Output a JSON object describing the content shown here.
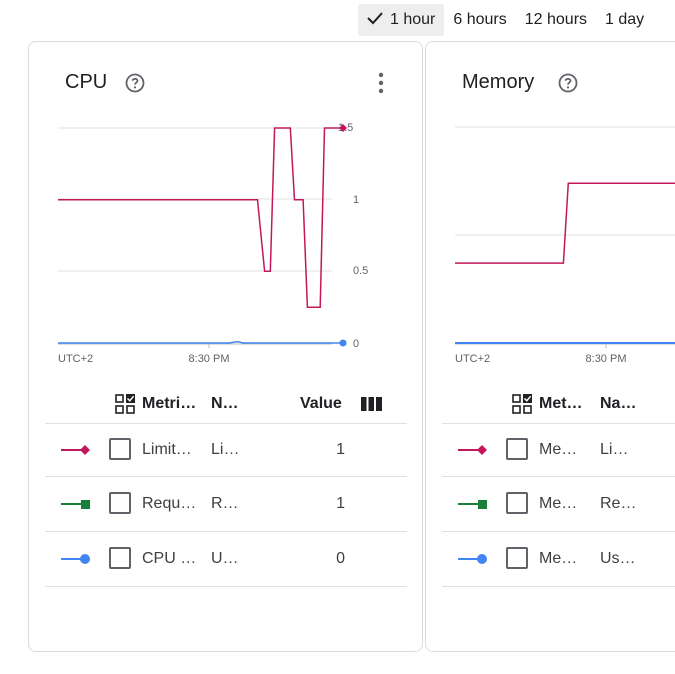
{
  "time_range": {
    "selected": "1 hour",
    "options": [
      "1 hour",
      "6 hours",
      "12 hours",
      "1 day"
    ]
  },
  "colors": {
    "limit": "#c2185b",
    "request": "#188038",
    "usage": "#4285f4"
  },
  "cpu_card": {
    "title": "CPU",
    "chart_data": {
      "type": "line",
      "x_start_label": "UTC+2",
      "x_tick_labels": [
        "8:30 PM"
      ],
      "y_tick_labels": [
        "1.5",
        "1",
        "0.5",
        "0"
      ],
      "ylim": [
        0,
        1.5
      ],
      "grid": true,
      "series": [
        {
          "key": "limit",
          "x": [
            0,
            0.7,
            0.725,
            0.745,
            0.76,
            0.815,
            0.83,
            0.86,
            0.875,
            0.92,
            0.935,
            1
          ],
          "y": [
            1,
            1,
            0.5,
            0.5,
            1.5,
            1.5,
            1,
            1,
            0.25,
            0.25,
            1.5,
            1.5
          ]
        },
        {
          "key": "usage",
          "x": [
            0,
            0.6,
            0.63,
            0.65,
            1
          ],
          "y": [
            0,
            0,
            0.01,
            0,
            0
          ]
        }
      ]
    },
    "table": {
      "headers": {
        "metric": "Metri…",
        "name": "N…",
        "value": "Value"
      },
      "rows": [
        {
          "legend": "limit",
          "metric": "Limit…",
          "name": "Li…",
          "value": "1"
        },
        {
          "legend": "request",
          "metric": "Requ…",
          "name": "R…",
          "value": "1"
        },
        {
          "legend": "usage",
          "metric": "CPU …",
          "name": "U…",
          "value": "0"
        }
      ]
    }
  },
  "memory_card": {
    "title": "Memory",
    "chart_data": {
      "type": "line",
      "x_start_label": "UTC+2",
      "x_tick_labels": [
        "8:30 PM"
      ],
      "grid": true,
      "series": [
        {
          "key": "limit",
          "x": [
            0,
            0.45,
            0.47,
            1
          ],
          "y": [
            0.37,
            0.37,
            0.74,
            0.74
          ]
        },
        {
          "key": "usage",
          "x": [
            0,
            1
          ],
          "y": [
            0,
            0
          ]
        }
      ]
    },
    "table": {
      "headers": {
        "metric": "Met…",
        "name": "Na…"
      },
      "rows": [
        {
          "legend": "limit",
          "metric": "Me…",
          "name": "Li…"
        },
        {
          "legend": "request",
          "metric": "Me…",
          "name": "Re…"
        },
        {
          "legend": "usage",
          "metric": "Me…",
          "name": "Us…"
        }
      ]
    }
  }
}
